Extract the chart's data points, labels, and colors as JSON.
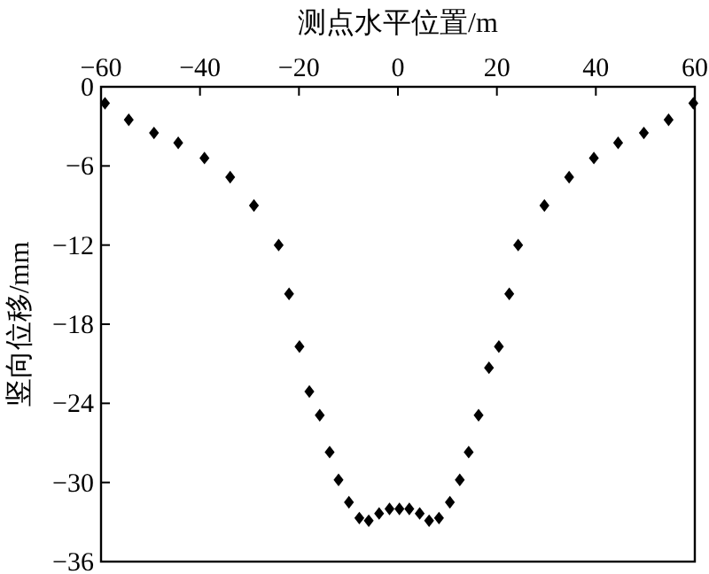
{
  "chart_data": {
    "type": "scatter",
    "xlabel": "测点水平位置/m",
    "ylabel": "竖向位移/mm",
    "x": [
      -59.2,
      -54.4,
      -49.3,
      -44.4,
      -39.1,
      -33.9,
      -29.1,
      -24.1,
      -22,
      -19.9,
      -17.9,
      -15.8,
      -13.8,
      -12,
      -9.9,
      -7.8,
      -5.9,
      -3.8,
      -1.7,
      0.3,
      2.3,
      4.4,
      6.3,
      8.3,
      10.5,
      12.5,
      14.3,
      16.3,
      18.4,
      20.4,
      22.5,
      24.3,
      29.6,
      34.6,
      39.6,
      44.5,
      49.7,
      54.7,
      59.7
    ],
    "series": [
      {
        "color": "#000000",
        "values": [
          -1.25,
          -2.5,
          -3.5,
          -4.25,
          -5.4,
          -6.85,
          -9,
          -12,
          -15.7,
          -19.7,
          -23.1,
          -24.9,
          -27.7,
          -29.8,
          -31.5,
          -32.7,
          -32.9,
          -32.35,
          -32,
          -32,
          -32,
          -32.35,
          -32.9,
          -32.7,
          -31.5,
          -29.8,
          -27.7,
          -24.9,
          -21.3,
          -19.7,
          -15.7,
          -12,
          -9,
          -6.85,
          -5.4,
          -4.25,
          -3.5,
          -2.5,
          -1.25
        ]
      }
    ],
    "xlim": [
      -60,
      60
    ],
    "ylim": [
      -36,
      0
    ],
    "xticks": [
      {
        "value": -60,
        "label": "−60"
      },
      {
        "value": -40,
        "label": "−40"
      },
      {
        "value": -20,
        "label": "−20"
      },
      0,
      20,
      40,
      60
    ],
    "yticks": [
      0,
      {
        "value": -6,
        "label": "−6"
      },
      {
        "value": -12,
        "label": "−12"
      },
      {
        "value": -18,
        "label": "−18"
      },
      {
        "value": -24,
        "label": "−24"
      },
      {
        "value": -30,
        "label": "−30"
      },
      {
        "value": -36,
        "label": "−36"
      }
    ],
    "marker": "diamond"
  }
}
